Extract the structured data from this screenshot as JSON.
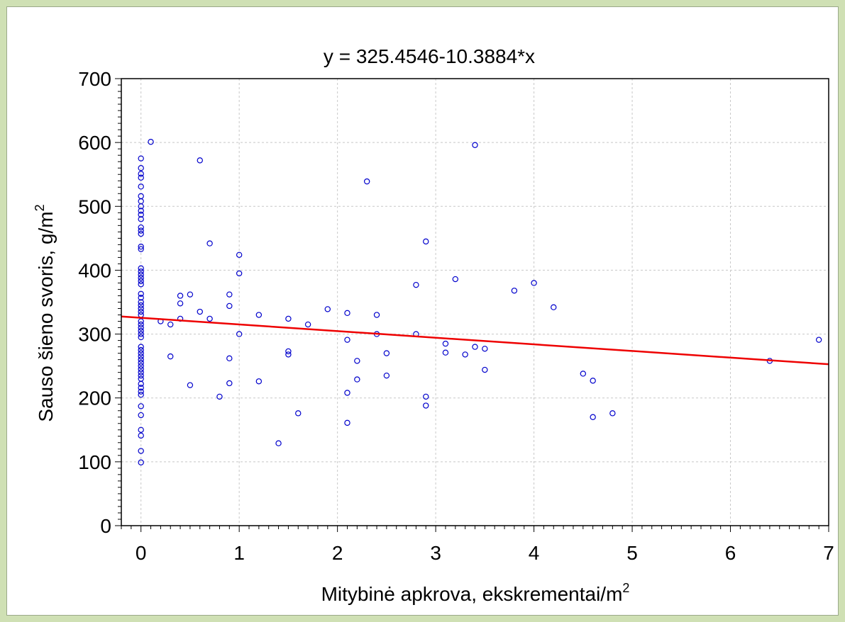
{
  "chart_data": {
    "type": "scatter",
    "title": "y = 325.4546-10.3884*x",
    "xlabel": "Mitybinė apkrova, ekskrementai/m",
    "xlabel_sup": "2",
    "ylabel": "Sauso šieno svoris, g/m",
    "ylabel_sup": "2",
    "xlim": [
      -0.2,
      7
    ],
    "ylim": [
      0,
      700
    ],
    "xticks": [
      0,
      1,
      2,
      3,
      4,
      5,
      6,
      7
    ],
    "yticks": [
      0,
      100,
      200,
      300,
      400,
      500,
      600,
      700
    ],
    "grid": true,
    "regression": {
      "intercept": 325.4546,
      "slope": -10.3884
    },
    "colors": {
      "points": "#0000cc",
      "fit_line": "#ee0000",
      "grid": "#c8c8c8",
      "background": "#cfe0b4"
    },
    "points": [
      [
        0,
        99
      ],
      [
        0,
        117
      ],
      [
        0,
        141
      ],
      [
        0,
        150
      ],
      [
        0,
        173
      ],
      [
        0,
        187
      ],
      [
        0,
        205
      ],
      [
        0,
        210
      ],
      [
        0,
        216
      ],
      [
        0,
        222
      ],
      [
        0,
        230
      ],
      [
        0,
        235
      ],
      [
        0,
        240
      ],
      [
        0,
        245
      ],
      [
        0,
        250
      ],
      [
        0,
        255
      ],
      [
        0,
        260
      ],
      [
        0,
        265
      ],
      [
        0,
        270
      ],
      [
        0,
        275
      ],
      [
        0,
        280
      ],
      [
        0,
        295
      ],
      [
        0,
        300
      ],
      [
        0,
        305
      ],
      [
        0,
        310
      ],
      [
        0,
        315
      ],
      [
        0,
        320
      ],
      [
        0,
        330
      ],
      [
        0,
        335
      ],
      [
        0,
        340
      ],
      [
        0,
        345
      ],
      [
        0,
        350
      ],
      [
        0,
        357
      ],
      [
        0,
        363
      ],
      [
        0,
        378
      ],
      [
        0,
        383
      ],
      [
        0,
        388
      ],
      [
        0,
        393
      ],
      [
        0,
        398
      ],
      [
        0,
        403
      ],
      [
        0,
        433
      ],
      [
        0,
        437
      ],
      [
        0,
        457
      ],
      [
        0,
        462
      ],
      [
        0,
        467
      ],
      [
        0,
        480
      ],
      [
        0,
        487
      ],
      [
        0,
        493
      ],
      [
        0,
        500
      ],
      [
        0,
        508
      ],
      [
        0,
        516
      ],
      [
        0,
        531
      ],
      [
        0,
        545
      ],
      [
        0,
        551
      ],
      [
        0,
        560
      ],
      [
        0,
        575
      ],
      [
        0.1,
        601
      ],
      [
        0.2,
        320
      ],
      [
        0.3,
        315
      ],
      [
        0.3,
        265
      ],
      [
        0.4,
        360
      ],
      [
        0.4,
        348
      ],
      [
        0.4,
        324
      ],
      [
        0.5,
        362
      ],
      [
        0.5,
        220
      ],
      [
        0.6,
        572
      ],
      [
        0.6,
        335
      ],
      [
        0.7,
        442
      ],
      [
        0.7,
        324
      ],
      [
        0.8,
        202
      ],
      [
        0.9,
        362
      ],
      [
        0.9,
        344
      ],
      [
        0.9,
        262
      ],
      [
        0.9,
        223
      ],
      [
        1.0,
        424
      ],
      [
        1.0,
        395
      ],
      [
        1.0,
        300
      ],
      [
        1.2,
        330
      ],
      [
        1.2,
        226
      ],
      [
        1.4,
        129
      ],
      [
        1.5,
        324
      ],
      [
        1.5,
        273
      ],
      [
        1.5,
        268
      ],
      [
        1.6,
        176
      ],
      [
        1.7,
        315
      ],
      [
        1.9,
        339
      ],
      [
        2.1,
        333
      ],
      [
        2.1,
        291
      ],
      [
        2.1,
        208
      ],
      [
        2.1,
        161
      ],
      [
        2.2,
        258
      ],
      [
        2.2,
        229
      ],
      [
        2.3,
        539
      ],
      [
        2.4,
        330
      ],
      [
        2.4,
        300
      ],
      [
        2.5,
        270
      ],
      [
        2.5,
        235
      ],
      [
        2.8,
        377
      ],
      [
        2.8,
        300
      ],
      [
        2.9,
        445
      ],
      [
        2.9,
        202
      ],
      [
        2.9,
        188
      ],
      [
        3.1,
        285
      ],
      [
        3.1,
        271
      ],
      [
        3.2,
        386
      ],
      [
        3.3,
        268
      ],
      [
        3.4,
        596
      ],
      [
        3.4,
        280
      ],
      [
        3.5,
        277
      ],
      [
        3.5,
        244
      ],
      [
        3.8,
        368
      ],
      [
        4.0,
        380
      ],
      [
        4.2,
        342
      ],
      [
        4.5,
        238
      ],
      [
        4.6,
        227
      ],
      [
        4.6,
        170
      ],
      [
        4.8,
        176
      ],
      [
        6.4,
        258
      ],
      [
        6.9,
        291
      ]
    ]
  }
}
